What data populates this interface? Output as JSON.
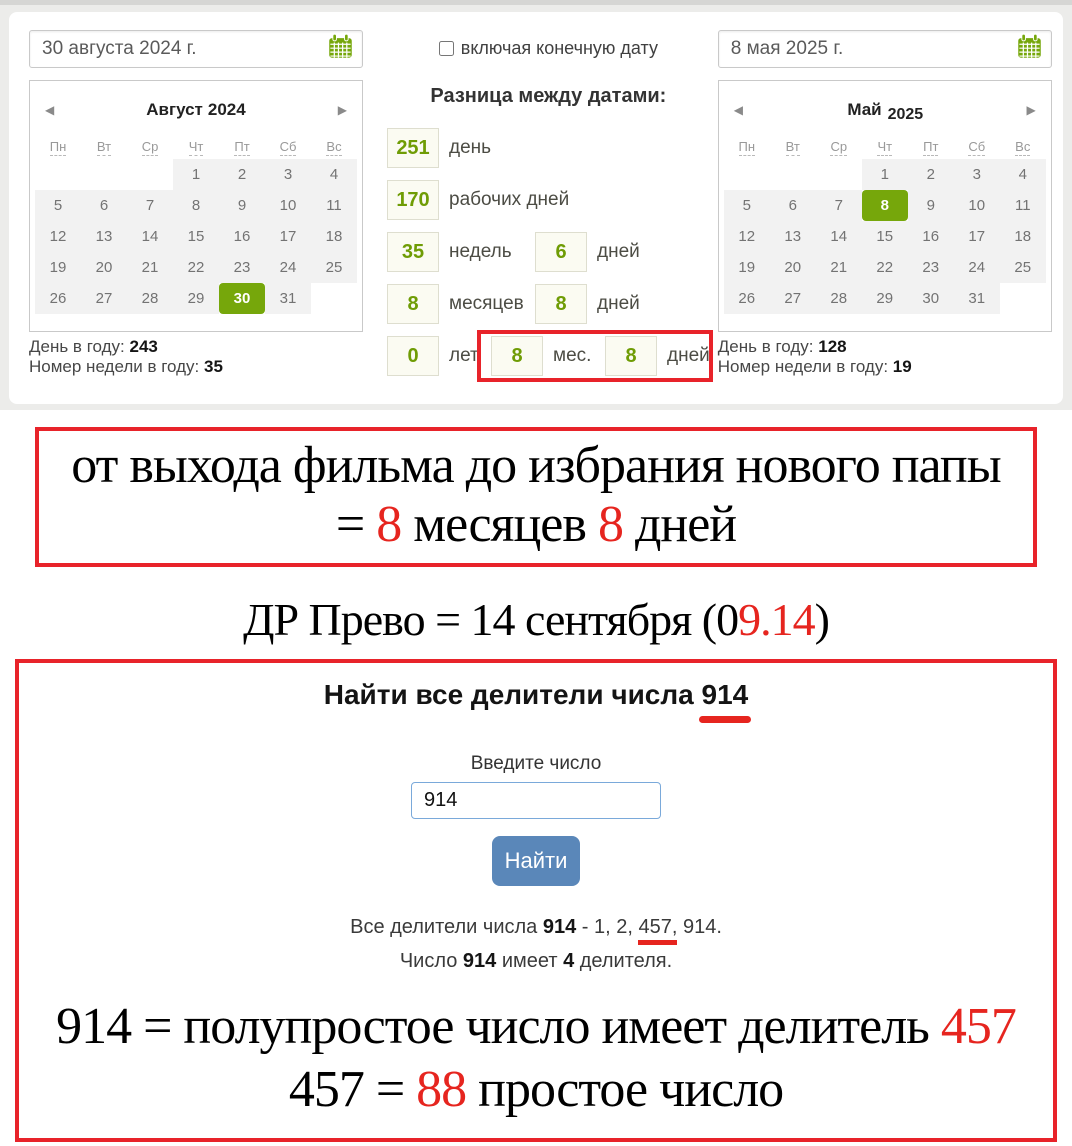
{
  "colors": {
    "accent_green": "#76a70b",
    "value_green": "#6f9c05",
    "annotation_red": "#e6251f",
    "button_blue": "#5a87b9"
  },
  "calculator": {
    "weekdays": [
      "Пн",
      "Вт",
      "Ср",
      "Чт",
      "Пт",
      "Сб",
      "Вс"
    ],
    "nav": {
      "prev_icon": "◀",
      "next_icon": "▶"
    },
    "include_checkbox_label": "включая конечную дату",
    "start": {
      "date_input": "30 августа 2024 г.",
      "month": "Август",
      "year": "2024",
      "selected_day": "30",
      "weeks": [
        [
          "",
          "",
          "",
          "1",
          "2",
          "3",
          "4"
        ],
        [
          "5",
          "6",
          "7",
          "8",
          "9",
          "10",
          "11"
        ],
        [
          "12",
          "13",
          "14",
          "15",
          "16",
          "17",
          "18"
        ],
        [
          "19",
          "20",
          "21",
          "22",
          "23",
          "24",
          "25"
        ],
        [
          "26",
          "27",
          "28",
          "29",
          "30",
          "31",
          ""
        ]
      ],
      "stats": [
        {
          "label": "День в году:",
          "value": "243"
        },
        {
          "label": "Номер недели в году:",
          "value": "35"
        }
      ]
    },
    "end": {
      "date_input": "8 мая 2025 г.",
      "month": "Май",
      "year": "2025",
      "selected_day": "8",
      "weeks": [
        [
          "",
          "",
          "",
          "1",
          "2",
          "3",
          "4"
        ],
        [
          "5",
          "6",
          "7",
          "8",
          "9",
          "10",
          "11"
        ],
        [
          "12",
          "13",
          "14",
          "15",
          "16",
          "17",
          "18"
        ],
        [
          "19",
          "20",
          "21",
          "22",
          "23",
          "24",
          "25"
        ],
        [
          "26",
          "27",
          "28",
          "29",
          "30",
          "31",
          ""
        ]
      ],
      "stats": [
        {
          "label": "День в году:",
          "value": "128"
        },
        {
          "label": "Номер недели в году:",
          "value": "19"
        }
      ]
    },
    "difference": {
      "title": "Разница между датами:",
      "rows": [
        {
          "value": "251",
          "label": "день"
        },
        {
          "value": "170",
          "label": "рабочих дней"
        },
        {
          "value": "35",
          "label": "недель",
          "value2": "6",
          "label2": "дней"
        },
        {
          "value": "8",
          "label": "месяцев",
          "value2": "8",
          "label2": "дней"
        },
        {
          "value": "0",
          "label": "лет",
          "value2": "8",
          "label2": "мес.",
          "value3": "8",
          "label3": "дней"
        }
      ]
    }
  },
  "annotations": {
    "film_box": {
      "line1": "от выхода фильма до избрания нового папы",
      "line2_prefix": "= ",
      "months_value": "8",
      "line2_middle": " месяцев ",
      "days_value": "8",
      "line2_suffix": " дней"
    },
    "birthday": {
      "prefix": "ДР Прево = 14 сентября (0",
      "highlight": "9.14",
      "suffix": ")"
    },
    "conclusion": {
      "line1_prefix": "914 = полупростое число имеет делитель ",
      "line1_highlight": "457",
      "line2_prefix": "457 = ",
      "line2_highlight": "88",
      "line2_suffix": " простое число"
    }
  },
  "divisor_widget": {
    "title_prefix": "Найти все делители числа ",
    "title_number": "914",
    "input_label": "Введите число",
    "input_value": "914",
    "button_label": "Найти",
    "result1": {
      "p1": "Все делители числа ",
      "n1": "914",
      "p2": " - 1, 2, ",
      "underlined": "457,",
      "p3": " 914."
    },
    "result2": {
      "p1": "Число ",
      "n1": "914",
      "p2": " имеет ",
      "n2": "4",
      "p3": " делителя."
    }
  }
}
